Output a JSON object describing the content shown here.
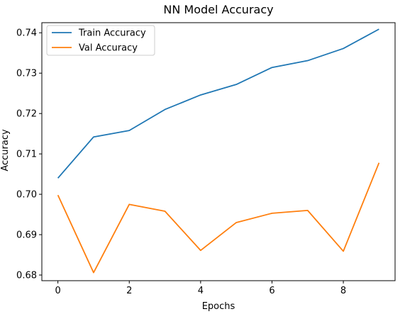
{
  "chart_data": {
    "type": "line",
    "title": "NN Model Accuracy",
    "xlabel": "Epochs",
    "ylabel": "Accuracy",
    "x": [
      0,
      1,
      2,
      3,
      4,
      5,
      6,
      7,
      8,
      9
    ],
    "xlim": [
      -0.45,
      9.45
    ],
    "ylim": [
      0.6786,
      0.7425
    ],
    "xticks": [
      0,
      2,
      4,
      6,
      8
    ],
    "yticks": [
      0.68,
      0.69,
      0.7,
      0.71,
      0.72,
      0.73,
      0.74
    ],
    "xtick_labels": [
      "0",
      "2",
      "4",
      "6",
      "8"
    ],
    "ytick_labels": [
      "0.68",
      "0.69",
      "0.70",
      "0.71",
      "0.72",
      "0.73",
      "0.74"
    ],
    "grid": false,
    "legend_position": "top-left",
    "series": [
      {
        "name": "Train Accuracy",
        "color": "#1f77b4",
        "values": [
          0.704,
          0.7142,
          0.7158,
          0.721,
          0.7246,
          0.7272,
          0.7314,
          0.7331,
          0.7361,
          0.7409
        ]
      },
      {
        "name": "Val Accuracy",
        "color": "#ff7f0e",
        "values": [
          0.6998,
          0.6806,
          0.6975,
          0.6958,
          0.6861,
          0.693,
          0.6953,
          0.696,
          0.6859,
          0.7078
        ]
      }
    ]
  }
}
